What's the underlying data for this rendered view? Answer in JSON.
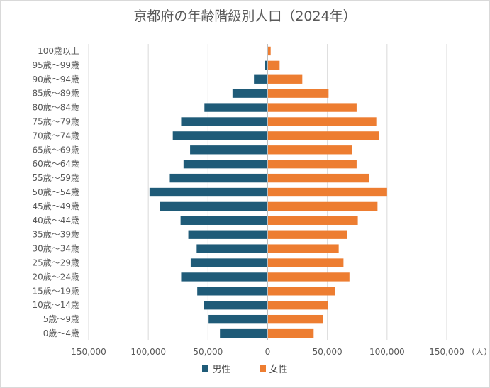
{
  "chart_data": {
    "type": "bar",
    "orientation": "horizontal-population-pyramid",
    "title": "京都府の年齢階級別人口（2024年）",
    "unit_label": "（人）",
    "categories": [
      "100歳以上",
      "95歳〜99歳",
      "90歳〜94歳",
      "85歳〜89歳",
      "80歳〜84歳",
      "75歳〜79歳",
      "70歳〜74歳",
      "65歳〜69歳",
      "60歳〜64歳",
      "55歳〜59歳",
      "50歳〜54歳",
      "45歳〜49歳",
      "40歳〜44歳",
      "35歳〜39歳",
      "30歳〜34歳",
      "25歳〜29歳",
      "20歳〜24歳",
      "15歳〜19歳",
      "10歳〜14歳",
      "5歳〜9歳",
      "0歳〜4歳"
    ],
    "series": [
      {
        "name": "男性",
        "color": "#1f5b78",
        "values": [
          300,
          2500,
          11500,
          29500,
          53000,
          72500,
          79500,
          65000,
          70500,
          82000,
          99000,
          90000,
          73000,
          66500,
          59500,
          64500,
          72500,
          59000,
          53500,
          49500,
          40000
        ]
      },
      {
        "name": "女性",
        "color": "#ed7d31",
        "values": [
          2500,
          10000,
          29000,
          51000,
          74500,
          91000,
          93000,
          70500,
          74500,
          85000,
          100000,
          92000,
          75500,
          66500,
          59500,
          63500,
          68500,
          56500,
          50500,
          46500,
          38500
        ]
      }
    ],
    "x_ticks": [
      "150,000",
      "100,000",
      "50,000",
      "0",
      "50,000",
      "100,000",
      "150,000"
    ],
    "xlim": [
      -150000,
      150000
    ],
    "grid": true,
    "legend_position": "bottom"
  }
}
